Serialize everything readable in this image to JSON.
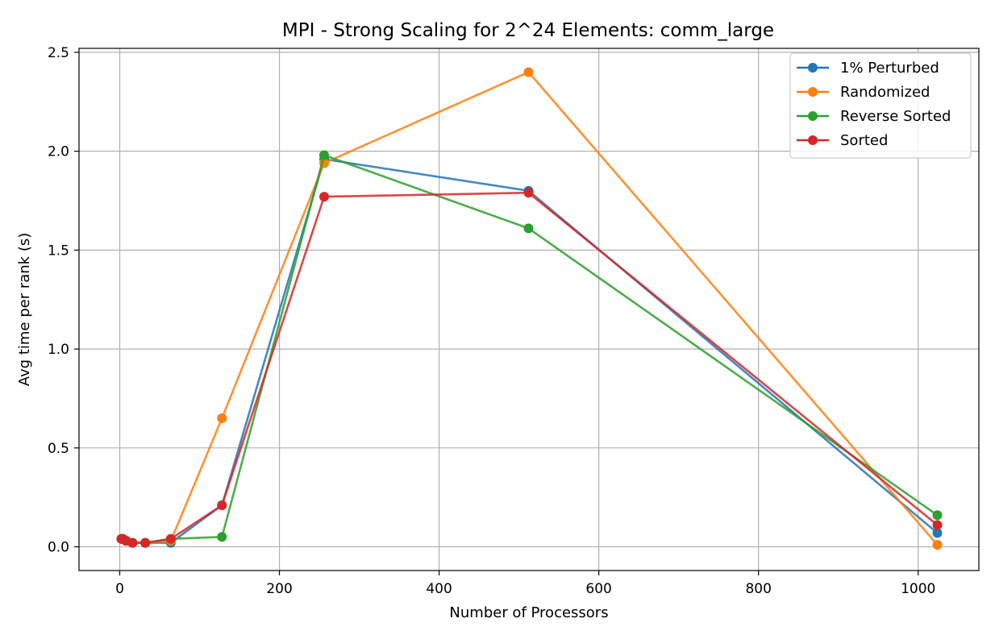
{
  "chart_data": {
    "type": "line",
    "title": "MPI - Strong Scaling for 2^24 Elements: comm_large",
    "xlabel": "Number of Processors",
    "ylabel": "Avg time per rank (s)",
    "xlim": [
      -51,
      1076
    ],
    "ylim": [
      -0.12,
      2.52
    ],
    "xticks": [
      0,
      200,
      400,
      600,
      800,
      1000
    ],
    "yticks": [
      0.0,
      0.5,
      1.0,
      1.5,
      2.0,
      2.5
    ],
    "xtick_labels": [
      "0",
      "200",
      "400",
      "600",
      "800",
      "1000"
    ],
    "ytick_labels": [
      "0.0",
      "0.5",
      "1.0",
      "1.5",
      "2.0",
      "2.5"
    ],
    "grid": true,
    "legend_position": "top-right",
    "x": [
      2,
      4,
      8,
      16,
      32,
      64,
      128,
      256,
      512,
      1024
    ],
    "series": [
      {
        "name": "1% Perturbed",
        "color": "#1f77b4",
        "values": [
          0.04,
          0.04,
          0.03,
          0.02,
          0.02,
          0.02,
          0.21,
          1.96,
          1.8,
          0.07
        ]
      },
      {
        "name": "Randomized",
        "color": "#ff7f0e",
        "values": [
          0.04,
          0.04,
          0.03,
          0.02,
          0.02,
          0.03,
          0.65,
          1.94,
          2.4,
          0.01
        ]
      },
      {
        "name": "Reverse Sorted",
        "color": "#2ca02c",
        "values": [
          0.04,
          0.04,
          0.03,
          0.02,
          0.02,
          0.04,
          0.05,
          1.98,
          1.61,
          0.16
        ]
      },
      {
        "name": "Sorted",
        "color": "#d62728",
        "values": [
          0.04,
          0.04,
          0.03,
          0.02,
          0.02,
          0.04,
          0.21,
          1.77,
          1.79,
          0.11
        ]
      }
    ]
  }
}
